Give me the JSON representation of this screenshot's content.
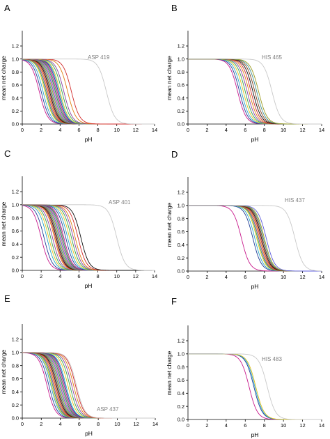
{
  "figure": {
    "x_ticks": [
      "0",
      "2",
      "4",
      "6",
      "8",
      "10",
      "12",
      "14"
    ],
    "y_ticks": [
      "0.0",
      "0.2",
      "0.4",
      "0.6",
      "0.8",
      "1.0",
      "1.2"
    ]
  },
  "palette": [
    "#c8198c",
    "#1e3c96",
    "#2aa7c8",
    "#e3c21a",
    "#32a04b",
    "#8a3fa0",
    "#e07d10",
    "#d12a2a",
    "#0b0b0b",
    "#7f3b16",
    "#3c8f8f",
    "#9b9b1e",
    "#5a5adc",
    "#cc5599",
    "#1a8f55",
    "#6b6b6b"
  ],
  "chart_data": [
    {
      "panel": "A",
      "type": "line",
      "xlabel": "pH",
      "ylabel": "mean net charge",
      "xlim": [
        0,
        14
      ],
      "ylim": [
        0,
        1.2
      ],
      "annotation": "ASP 419",
      "highlight_color": "#c8c8c8",
      "highlight_pka": 8.9,
      "pkas": [
        1.8,
        2.0,
        2.2,
        2.4,
        2.5,
        2.6,
        2.7,
        2.8,
        2.9,
        3.0,
        3.1,
        3.2,
        3.3,
        3.4,
        3.5,
        3.6,
        3.7,
        3.8,
        3.9,
        4.0,
        4.2,
        4.4,
        4.8,
        5.2
      ]
    },
    {
      "panel": "B",
      "type": "line",
      "xlabel": "pH",
      "ylabel": "mean net charge",
      "xlim": [
        0,
        14
      ],
      "ylim": [
        0,
        1.2
      ],
      "annotation": "HIS 465",
      "highlight_color": "#c8c8c8",
      "highlight_pka": 8.8,
      "pkas": [
        5.2,
        5.4,
        5.6,
        5.8,
        6.0,
        6.2,
        6.4,
        6.6,
        6.8,
        7.0,
        7.2,
        7.4
      ]
    },
    {
      "panel": "C",
      "type": "line",
      "xlabel": "pH",
      "ylabel": "mean net charge",
      "xlim": [
        0,
        14
      ],
      "ylim": [
        0,
        1.2
      ],
      "annotation": "ASP 401",
      "highlight_color": "#c8c8c8",
      "highlight_pka": 10.0,
      "pkas": [
        2.0,
        2.3,
        2.6,
        2.8,
        3.0,
        3.2,
        3.4,
        3.5,
        3.6,
        3.7,
        3.8,
        3.9,
        4.0,
        4.1,
        4.2,
        4.3,
        4.4,
        4.6,
        4.8,
        5.0,
        5.2,
        5.4,
        5.6,
        5.9,
        6.2
      ]
    },
    {
      "panel": "D",
      "type": "line",
      "xlabel": "pH",
      "ylabel": "mean net charge",
      "xlim": [
        0,
        14
      ],
      "ylim": [
        0,
        1.2
      ],
      "annotation": "HIS 437",
      "highlight_color": "#c8c8c8",
      "highlight_pka": 11.2,
      "pkas": [
        5.6,
        6.8,
        7.0,
        7.2,
        7.3,
        7.4,
        7.5,
        7.6,
        7.7,
        7.8,
        7.9,
        8.0,
        8.2
      ]
    },
    {
      "panel": "E",
      "type": "line",
      "xlabel": "pH",
      "ylabel": "mean net charge",
      "xlim": [
        0,
        14
      ],
      "ylim": [
        0,
        1.2
      ],
      "annotation": "ASP 437",
      "highlight_color": "#c8c8c8",
      "highlight_pka": 5.7,
      "pkas": [
        2.6,
        2.8,
        3.0,
        3.1,
        3.2,
        3.3,
        3.4,
        3.5,
        3.6,
        3.7,
        3.8,
        3.9,
        4.0,
        4.1,
        4.2,
        4.3,
        4.4,
        4.5,
        4.6,
        4.8,
        5.0,
        5.2,
        5.4,
        5.6
      ]
    },
    {
      "panel": "F",
      "type": "line",
      "xlabel": "pH",
      "ylabel": "mean net charge",
      "xlim": [
        0,
        14
      ],
      "ylim": [
        0,
        1.2
      ],
      "annotation": "HIS 483",
      "highlight_color": "#c8c8c8",
      "highlight_pka": 8.3,
      "pkas": [
        6.4,
        6.9,
        7.0,
        7.1
      ]
    }
  ]
}
